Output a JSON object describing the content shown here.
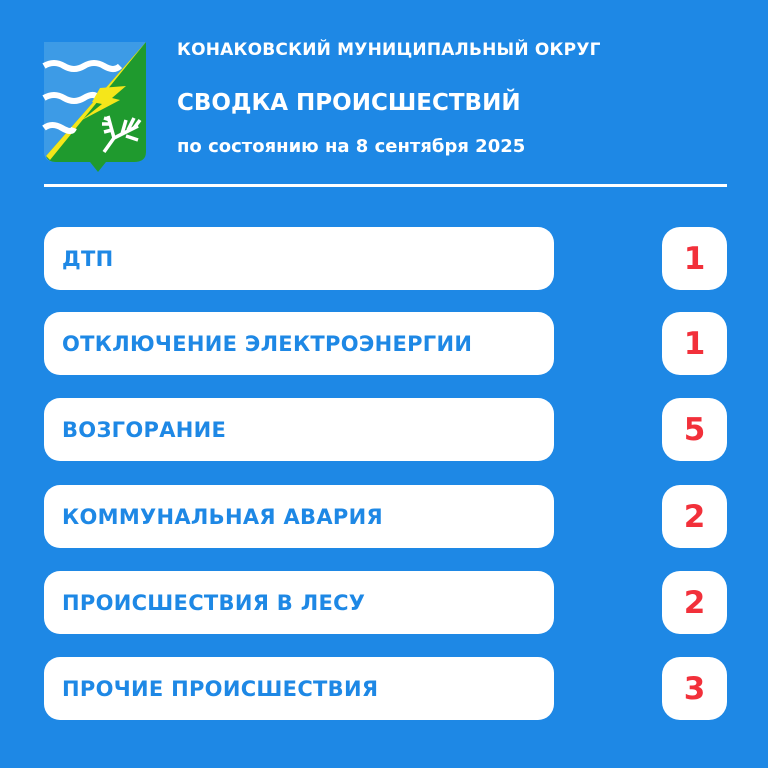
{
  "header": {
    "organization": "КОНАКОВСКИЙ МУНИЦИПАЛЬНЫЙ ОКРУГ",
    "title": "СВОДКА ПРОИСШЕСТВИЙ",
    "subtitle": "по состоянию на 8 сентября 2025",
    "logo_icon": "coat-of-arms-icon"
  },
  "colors": {
    "background": "#1e88e5",
    "label_text": "#1e88e5",
    "count_text": "#f2303a"
  },
  "incidents": [
    {
      "label": "ДТП",
      "count": "1"
    },
    {
      "label": "ОТКЛЮЧЕНИЕ ЭЛЕКТРОЭНЕРГИИ",
      "count": "1"
    },
    {
      "label": "ВОЗГОРАНИЕ",
      "count": "5"
    },
    {
      "label": "КОММУНАЛЬНАЯ АВАРИЯ",
      "count": "2"
    },
    {
      "label": "ПРОИСШЕСТВИЯ В ЛЕСУ",
      "count": "2"
    },
    {
      "label": "ПРОЧИЕ ПРОИСШЕСТВИЯ",
      "count": "3"
    }
  ]
}
